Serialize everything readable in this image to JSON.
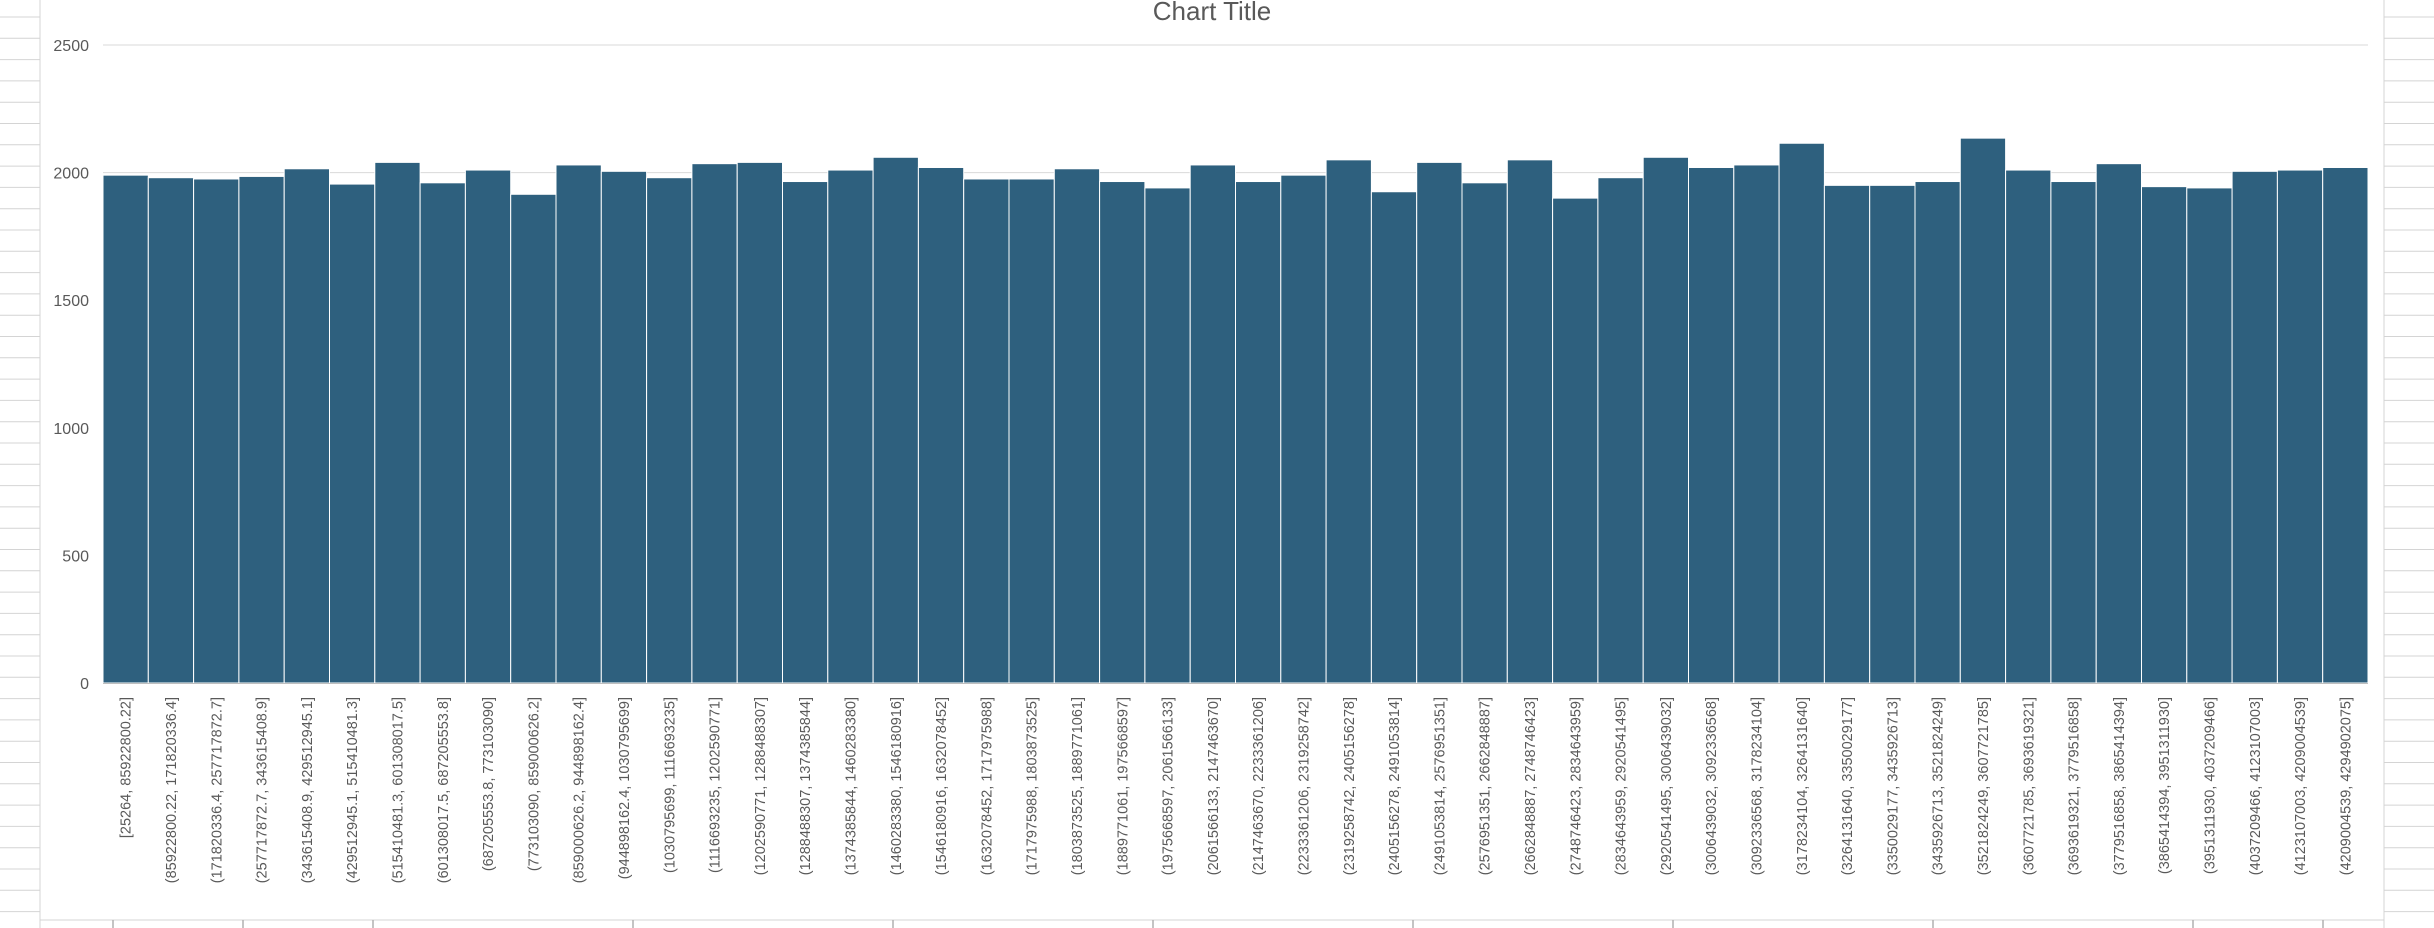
{
  "colors": {
    "bar": "#2E607E",
    "bar_border": "#FFFFFF",
    "gridline": "#D9D9D9",
    "axis": "#BFBFBF",
    "text": "#595959",
    "sheet_lines": "#D4D4D4"
  },
  "chart_data": {
    "type": "bar",
    "title": "Chart Title",
    "xlabel": "",
    "ylabel": "",
    "ylim": [
      0,
      2500
    ],
    "yticks": [
      0,
      500,
      1000,
      1500,
      2000,
      2500
    ],
    "grid": true,
    "legend": "none",
    "categories": [
      "[25264, 85922800.22]",
      "(85922800.22, 171820336.4]",
      "(171820336.4, 257717872.7]",
      "(257717872.7, 343615408.9]",
      "(343615408.9, 429512945.1]",
      "(429512945.1, 515410481.3]",
      "(515410481.3, 601308017.5]",
      "(601308017.5, 687205553.8]",
      "(687205553.8, 773103090]",
      "(773103090, 859000626.2]",
      "(859000626.2, 944898162.4]",
      "(944898162.4, 1030795699]",
      "(1030795699, 1116693235]",
      "(1116693235, 1202590771]",
      "(1202590771, 1288488307]",
      "(1288488307, 1374385844]",
      "(1374385844, 1460283380]",
      "(1460283380, 1546180916]",
      "(1546180916, 1632078452]",
      "(1632078452, 1717975988]",
      "(1717975988, 1803873525]",
      "(1803873525, 1889771061]",
      "(1889771061, 1975668597]",
      "(1975668597, 2061566133]",
      "(2061566133, 2147463670]",
      "(2147463670, 2233361206]",
      "(2233361206, 2319258742]",
      "(2319258742, 2405156278]",
      "(2405156278, 2491053814]",
      "(2491053814, 2576951351]",
      "(2576951351, 2662848887]",
      "(2662848887, 2748746423]",
      "(2748746423, 2834643959]",
      "(2834643959, 2920541495]",
      "(2920541495, 3006439032]",
      "(3006439032, 3092336568]",
      "(3092336568, 3178234104]",
      "(3178234104, 3264131640]",
      "(3264131640, 3350029177]",
      "(3350029177, 3435926713]",
      "(3435926713, 3521824249]",
      "(3521824249, 3607721785]",
      "(3607721785, 3693619321]",
      "(3693619321, 3779516858]",
      "(3779516858, 3865414394]",
      "(3865414394, 3951311930]",
      "(3951311930, 4037209466]",
      "(4037209466, 4123107003]",
      "(4123107003, 4209004539]",
      "(4209004539, 4294902075]"
    ],
    "values": [
      1990,
      1980,
      1975,
      1985,
      2015,
      1955,
      2040,
      1960,
      2010,
      1915,
      2030,
      2005,
      1980,
      2035,
      2040,
      1965,
      2010,
      2060,
      2020,
      1975,
      1975,
      2015,
      1965,
      1940,
      2030,
      1965,
      1990,
      2050,
      1925,
      2040,
      1960,
      2050,
      1900,
      1980,
      2060,
      2020,
      2030,
      2115,
      1950,
      1950,
      1965,
      2135,
      2010,
      1965,
      2035,
      1945,
      1940,
      2005,
      2010,
      2020
    ]
  }
}
